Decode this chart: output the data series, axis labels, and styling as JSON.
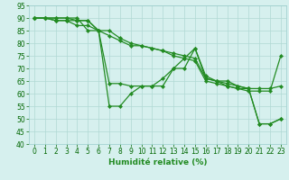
{
  "xlabel": "Humidité relative (%)",
  "xlim": [
    -0.5,
    23.5
  ],
  "ylim": [
    40,
    95
  ],
  "yticks": [
    40,
    45,
    50,
    55,
    60,
    65,
    70,
    75,
    80,
    85,
    90,
    95
  ],
  "xticks": [
    0,
    1,
    2,
    3,
    4,
    5,
    6,
    7,
    8,
    9,
    10,
    11,
    12,
    13,
    14,
    15,
    16,
    17,
    18,
    19,
    20,
    21,
    22,
    23
  ],
  "bg_color": "#d6f0ee",
  "grid_color": "#b0d8d4",
  "line_color": "#228B22",
  "lines": [
    {
      "x": [
        0,
        1,
        2,
        3,
        4,
        5,
        6,
        7,
        8,
        9,
        10,
        11,
        12,
        13,
        14,
        15,
        16,
        17,
        18,
        19,
        20,
        21,
        22,
        23
      ],
      "y": [
        90,
        90,
        89,
        89,
        89,
        89,
        85,
        64,
        64,
        63,
        63,
        63,
        63,
        70,
        74,
        78,
        66,
        65,
        63,
        62,
        62,
        48,
        48,
        50
      ]
    },
    {
      "x": [
        0,
        1,
        2,
        3,
        4,
        5,
        6,
        7,
        8,
        9,
        10,
        11,
        12,
        13,
        14,
        15,
        16,
        17,
        18,
        19,
        20,
        21,
        22,
        23
      ],
      "y": [
        90,
        90,
        90,
        90,
        89,
        89,
        85,
        85,
        82,
        80,
        79,
        78,
        77,
        76,
        75,
        74,
        66,
        65,
        64,
        63,
        62,
        62,
        62,
        63
      ]
    },
    {
      "x": [
        0,
        1,
        2,
        3,
        4,
        5,
        6,
        7,
        8,
        9,
        10,
        11,
        12,
        13,
        14,
        15,
        16,
        17,
        18,
        19,
        20,
        21,
        22,
        23
      ],
      "y": [
        90,
        90,
        90,
        90,
        90,
        85,
        85,
        83,
        81,
        79,
        79,
        78,
        77,
        75,
        74,
        73,
        65,
        64,
        63,
        62,
        61,
        61,
        61,
        75
      ]
    },
    {
      "x": [
        0,
        1,
        2,
        3,
        4,
        5,
        6,
        7,
        8,
        9,
        10,
        11,
        12,
        13,
        14,
        15,
        16,
        17,
        18,
        19,
        20,
        21,
        22,
        23
      ],
      "y": [
        90,
        90,
        89,
        89,
        87,
        87,
        85,
        55,
        55,
        60,
        63,
        63,
        66,
        70,
        70,
        78,
        67,
        65,
        65,
        63,
        62,
        48,
        48,
        50
      ]
    }
  ],
  "tick_fontsize": 5.5,
  "xlabel_fontsize": 6.5,
  "xlabel_color": "#228B22"
}
